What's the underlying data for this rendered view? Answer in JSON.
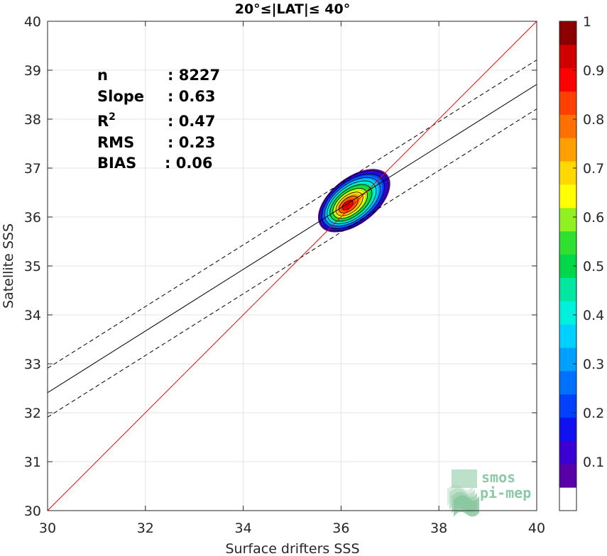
{
  "chart_data": {
    "type": "heatmap",
    "title": "20°≤|LAT|≤ 40°",
    "xlabel": "Surface drifters SSS",
    "ylabel": "Satellite SSS",
    "xlim": [
      30,
      40
    ],
    "ylim": [
      30,
      40
    ],
    "x_ticks": [
      "30",
      "32",
      "34",
      "36",
      "38",
      "40"
    ],
    "y_ticks": [
      "30",
      "31",
      "32",
      "33",
      "34",
      "35",
      "36",
      "37",
      "38",
      "39",
      "40"
    ],
    "grid": true,
    "stats": [
      {
        "label": "n",
        "value": ": 8227"
      },
      {
        "label": "Slope",
        "value": ": 0.63"
      },
      {
        "label": "R",
        "sup": "2",
        "value": ": 0.47"
      },
      {
        "label": "RMS",
        "value": ": 0.23"
      },
      {
        "label": "BIAS",
        "value": ": 0.06"
      }
    ],
    "lines": {
      "identity": {
        "x": [
          30,
          40
        ],
        "y": [
          30,
          40
        ],
        "color": "#ff0000"
      },
      "fit": {
        "x": [
          30,
          40
        ],
        "y": [
          32.41,
          38.71
        ],
        "color": "#000000"
      },
      "fit_upper": {
        "x": [
          30,
          40
        ],
        "y": [
          32.91,
          39.21
        ],
        "color": "#000000",
        "style": "dashed"
      },
      "fit_lower": {
        "x": [
          30,
          40
        ],
        "y": [
          31.91,
          38.21
        ],
        "color": "#000000",
        "style": "dashed"
      }
    },
    "density": {
      "center": [
        36.17,
        36.27
      ],
      "peak": 1.0,
      "levels": [
        0.05,
        0.1,
        0.15,
        0.2,
        0.25,
        0.3,
        0.35,
        0.4,
        0.45,
        0.5,
        0.55,
        0.6,
        0.65,
        0.7,
        0.75,
        0.8,
        0.85,
        0.9,
        0.95
      ]
    },
    "colorbar": {
      "ticks": [
        "0.1",
        "0.2",
        "0.3",
        "0.4",
        "0.5",
        "0.6",
        "0.7",
        "0.8",
        "0.9",
        "1"
      ],
      "range": [
        0,
        1
      ],
      "colors": [
        "#ffffff",
        "#5a00a8",
        "#3b00d4",
        "#1010f0",
        "#0040ff",
        "#0070ff",
        "#00a0ff",
        "#00d0ff",
        "#00f0e0",
        "#00e8a0",
        "#00d84a",
        "#30e030",
        "#90f020",
        "#ffff00",
        "#ffd800",
        "#ffa000",
        "#ff7000",
        "#ff4000",
        "#ff0000",
        "#d00000",
        "#8b0000"
      ]
    },
    "watermark": [
      "smos",
      "pi-mep"
    ]
  }
}
